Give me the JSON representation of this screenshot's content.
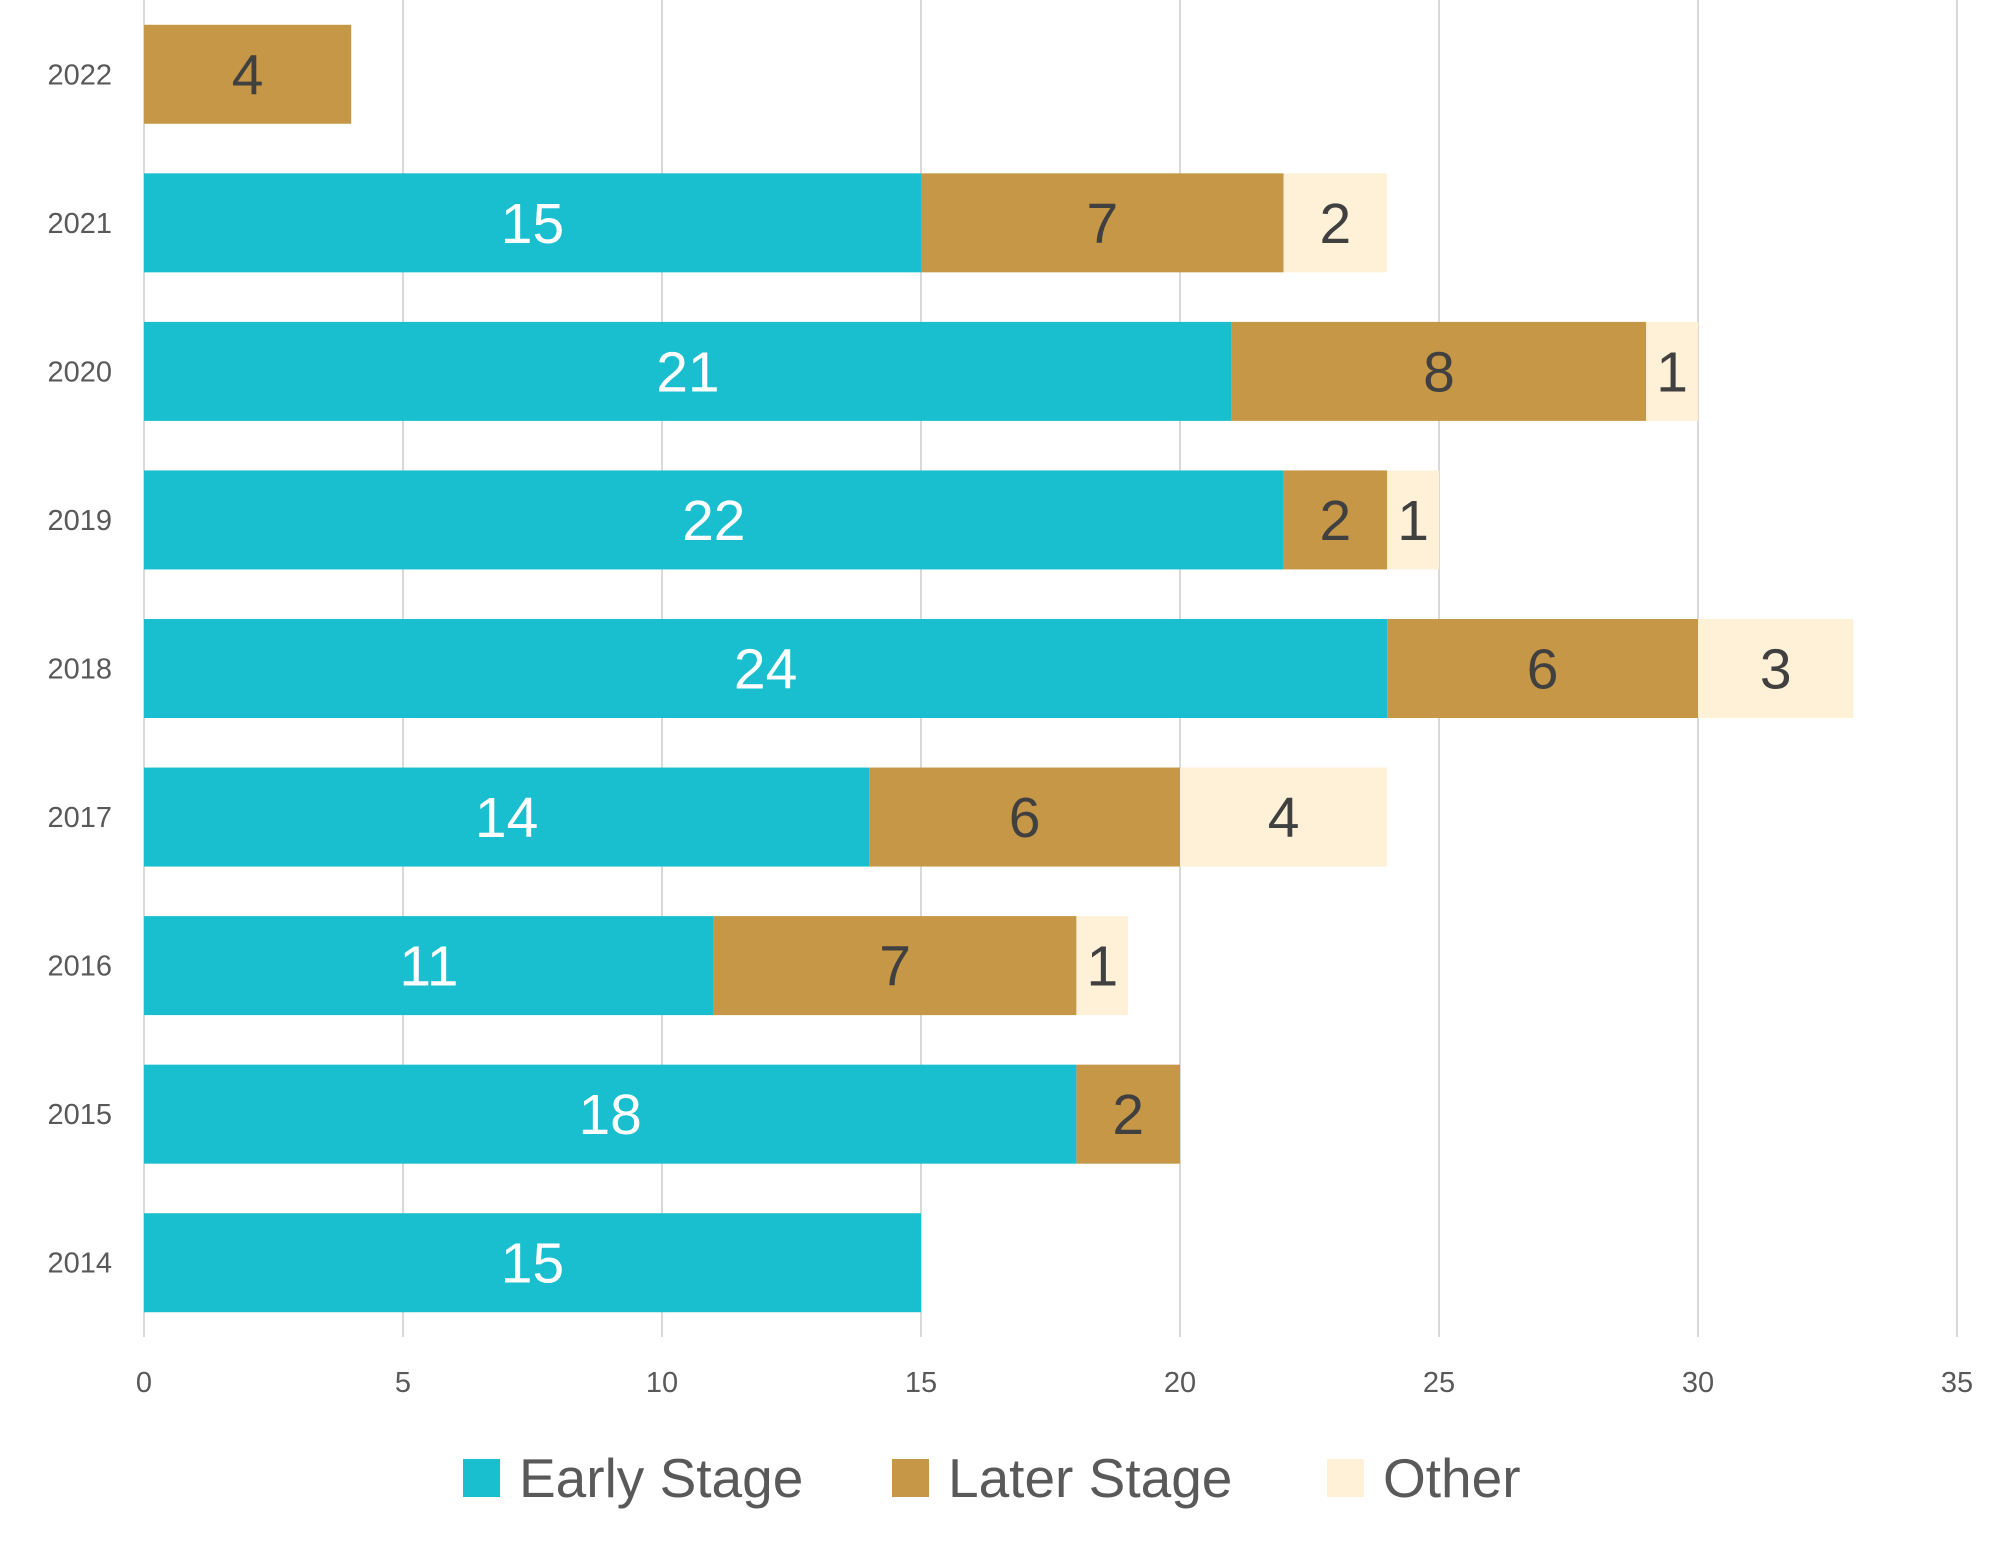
{
  "chart_data": {
    "type": "bar",
    "orientation": "horizontal",
    "stacked": true,
    "title": "",
    "xlabel": "",
    "ylabel": "",
    "categories": [
      "2022",
      "2021",
      "2020",
      "2019",
      "2018",
      "2017",
      "2016",
      "2015",
      "2014"
    ],
    "series": [
      {
        "name": "Early Stage",
        "color": "#19BECF",
        "label_color": "#ffffff",
        "values": [
          null,
          15,
          21,
          22,
          24,
          14,
          11,
          18,
          15
        ]
      },
      {
        "name": "Later Stage",
        "color": "#C59746",
        "label_color": "#404040",
        "values": [
          4,
          7,
          8,
          2,
          6,
          6,
          7,
          2,
          null
        ]
      },
      {
        "name": "Other",
        "color": "#FFF0D8",
        "label_color": "#404040",
        "values": [
          null,
          2,
          1,
          1,
          3,
          4,
          1,
          null,
          null
        ]
      }
    ],
    "xlim": [
      0,
      35
    ],
    "xticks": [
      "0",
      "5",
      "10",
      "15",
      "20",
      "25",
      "30",
      "35"
    ],
    "xtick_values": [
      0,
      5,
      10,
      15,
      20,
      25,
      30,
      35
    ],
    "grid": true,
    "gridline_color": "#D9D9D9",
    "axis_text_color": "#595959",
    "legend_position": "bottom",
    "data_labels": true
  }
}
